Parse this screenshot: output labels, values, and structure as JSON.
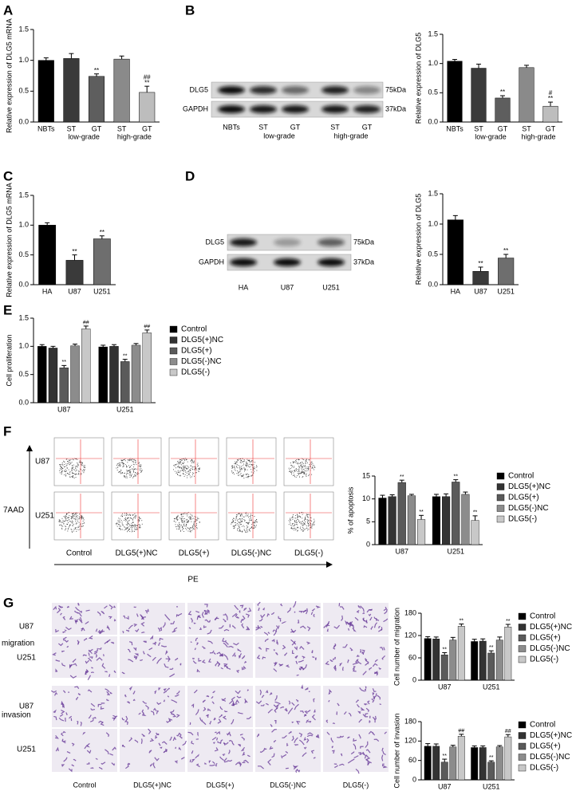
{
  "panel_labels": [
    "A",
    "B",
    "C",
    "D",
    "E",
    "F",
    "G"
  ],
  "blots": [
    {
      "rows": [
        "DLG5",
        "GAPDH"
      ],
      "sizes": [
        "75kDa",
        "37kDa"
      ],
      "lanes": [
        "NBTs",
        "ST",
        "GT",
        "ST",
        "GT"
      ],
      "lane_groups": [
        "low-grade",
        "high-grade"
      ]
    },
    {
      "rows": [
        "DLG5",
        "GAPDH"
      ],
      "sizes": [
        "75kDa",
        "37kDa"
      ],
      "lanes": [
        "HA",
        "U87",
        "U251"
      ]
    }
  ],
  "flow": {
    "rows": [
      "U87",
      "U251"
    ],
    "y_label": "7AAD",
    "x_label": "PE",
    "columns": [
      "Control",
      "DLG5(+)NC",
      "DLG5(+)",
      "DLG5(-)NC",
      "DLG5(-)"
    ]
  },
  "micrographs": {
    "rows": [
      "U87",
      "U251",
      "U87",
      "U251"
    ],
    "assays": [
      "migration",
      "invasion"
    ],
    "columns": [
      "Control",
      "DLG5(+)NC",
      "DLG5(+)",
      "DLG5(-)NC",
      "DLG5(-)"
    ]
  },
  "chart_data": [
    {
      "type": "bar",
      "y_label": "Relative expression of DLG5 mRNA",
      "categories": [
        "NBTs",
        "ST",
        "GT",
        "ST",
        "GT"
      ],
      "category_groups": [
        "low-grade",
        "high-grade"
      ],
      "values": [
        1.0,
        1.03,
        0.74,
        1.02,
        0.48
      ],
      "errors": [
        0.04,
        0.08,
        0.04,
        0.05,
        0.1
      ],
      "colors": [
        "#000000",
        "#3a3a3a",
        "#5e5e5e",
        "#8a8a8a",
        "#bdbdbd"
      ],
      "annotations": [
        [],
        [],
        [
          "**"
        ],
        [],
        [
          "##",
          "**"
        ]
      ],
      "ylim": [
        0,
        1.5
      ],
      "yticks": [
        {
          "value": 0,
          "label": "0.0"
        },
        0.5,
        {
          "value": 1,
          "label": "1.0"
        },
        1.5
      ]
    },
    {
      "type": "bar",
      "y_label": "Relative expression of DLG5",
      "categories": [
        "NBTs",
        "ST",
        "GT",
        "ST",
        "GT"
      ],
      "category_groups": [
        "low-grade",
        "high-grade"
      ],
      "values": [
        1.04,
        0.92,
        0.41,
        0.93,
        0.27
      ],
      "errors": [
        0.03,
        0.07,
        0.04,
        0.04,
        0.07
      ],
      "colors": [
        "#000000",
        "#3a3a3a",
        "#5e5e5e",
        "#8a8a8a",
        "#bdbdbd"
      ],
      "annotations": [
        [],
        [],
        [
          "**"
        ],
        [],
        [
          "#",
          "**"
        ]
      ],
      "ylim": [
        0,
        1.5
      ],
      "yticks": [
        {
          "value": 0,
          "label": "0.0"
        },
        0.5,
        {
          "value": 1,
          "label": "1.0"
        },
        1.5
      ]
    },
    {
      "type": "bar",
      "y_label": "Relative expression of DLG5 mRNA",
      "categories": [
        "HA",
        "U87",
        "U251"
      ],
      "values": [
        1.0,
        0.41,
        0.77
      ],
      "errors": [
        0.04,
        0.09,
        0.05
      ],
      "colors": [
        "#000000",
        "#3a3a3a",
        "#6e6e6e"
      ],
      "annotations": [
        [],
        [
          "**"
        ],
        [
          "**"
        ]
      ],
      "ylim": [
        0,
        1.5
      ],
      "yticks": [
        {
          "value": 0,
          "label": "0.0"
        },
        0.5,
        {
          "value": 1,
          "label": "1.0"
        },
        1.5
      ]
    },
    {
      "type": "bar",
      "y_label": "Relative expression of DLG5",
      "categories": [
        "HA",
        "U87",
        "U251"
      ],
      "values": [
        1.07,
        0.22,
        0.44
      ],
      "errors": [
        0.07,
        0.07,
        0.06
      ],
      "colors": [
        "#000000",
        "#3a3a3a",
        "#6e6e6e"
      ],
      "annotations": [
        [],
        [
          "**"
        ],
        [
          "**"
        ]
      ],
      "ylim": [
        0,
        1.5
      ],
      "yticks": [
        {
          "value": 0,
          "label": "0.0"
        },
        0.5,
        {
          "value": 1,
          "label": "1.0"
        },
        1.5
      ]
    },
    {
      "type": "grouped_bar",
      "y_label": "Cell proliferation",
      "categories": [
        "U87",
        "U251"
      ],
      "series": [
        {
          "name": "Control",
          "color": "#000000",
          "values": [
            1.0,
            0.99
          ],
          "errors": [
            0.03,
            0.03
          ],
          "annotations": [
            null,
            null
          ]
        },
        {
          "name": "DLG5(+)NC",
          "color": "#333333",
          "values": [
            0.97,
            1.0
          ],
          "errors": [
            0.03,
            0.03
          ],
          "annotations": [
            null,
            null
          ]
        },
        {
          "name": "DLG5(+)",
          "color": "#5a5a5a",
          "values": [
            0.62,
            0.73
          ],
          "errors": [
            0.04,
            0.04
          ],
          "annotations": [
            "**",
            "**"
          ]
        },
        {
          "name": "DLG5(-)NC",
          "color": "#8c8c8c",
          "values": [
            1.01,
            1.02
          ],
          "errors": [
            0.03,
            0.03
          ],
          "annotations": [
            null,
            null
          ]
        },
        {
          "name": "DLG5(-)",
          "color": "#c8c8c8",
          "values": [
            1.31,
            1.24
          ],
          "errors": [
            0.05,
            0.05
          ],
          "annotations": [
            "##",
            "##"
          ]
        }
      ],
      "ylim": [
        0,
        1.5
      ],
      "yticks": [
        {
          "value": 0,
          "label": "0.0"
        },
        0.5,
        {
          "value": 1,
          "label": "1.0"
        },
        1.5
      ]
    },
    {
      "type": "grouped_bar",
      "y_label": "% of apoptosis",
      "categories": [
        "U87",
        "U251"
      ],
      "series": [
        {
          "name": "Control",
          "color": "#000000",
          "values": [
            10.2,
            10.5
          ],
          "errors": [
            0.6,
            0.5
          ],
          "annotations": [
            null,
            null
          ]
        },
        {
          "name": "DLG5(+)NC",
          "color": "#333333",
          "values": [
            10.5,
            10.5
          ],
          "errors": [
            0.4,
            0.6
          ],
          "annotations": [
            null,
            null
          ]
        },
        {
          "name": "DLG5(+)",
          "color": "#5a5a5a",
          "values": [
            13.6,
            13.7
          ],
          "errors": [
            0.5,
            0.5
          ],
          "annotations": [
            "**",
            "**"
          ]
        },
        {
          "name": "DLG5(-)NC",
          "color": "#8c8c8c",
          "values": [
            10.7,
            11.0
          ],
          "errors": [
            0.3,
            0.5
          ],
          "annotations": [
            null,
            null
          ]
        },
        {
          "name": "DLG5(-)",
          "color": "#c8c8c8",
          "values": [
            5.5,
            5.3
          ],
          "errors": [
            0.9,
            1.0
          ],
          "annotations": [
            "**",
            "**"
          ]
        }
      ],
      "ylim": [
        0,
        15
      ],
      "yticks": [
        0,
        5,
        10,
        15
      ]
    },
    {
      "type": "grouped_bar",
      "y_label": "Cell number of migration",
      "categories": [
        "U87",
        "U251"
      ],
      "series": [
        {
          "name": "Control",
          "color": "#000000",
          "values": [
            112,
            104
          ],
          "errors": [
            5,
            6
          ],
          "annotations": [
            null,
            null
          ]
        },
        {
          "name": "DLG5(+)NC",
          "color": "#333333",
          "values": [
            111,
            105
          ],
          "errors": [
            5,
            6
          ],
          "annotations": [
            null,
            null
          ]
        },
        {
          "name": "DLG5(+)",
          "color": "#5a5a5a",
          "values": [
            68,
            73
          ],
          "errors": [
            6,
            6
          ],
          "annotations": [
            "**",
            "**"
          ]
        },
        {
          "name": "DLG5(-)NC",
          "color": "#8c8c8c",
          "values": [
            108,
            108
          ],
          "errors": [
            7,
            8
          ],
          "annotations": [
            null,
            null
          ]
        },
        {
          "name": "DLG5(-)",
          "color": "#c8c8c8",
          "values": [
            145,
            143
          ],
          "errors": [
            6,
            7
          ],
          "annotations": [
            "**",
            "**"
          ]
        }
      ],
      "ylim": [
        0,
        180
      ],
      "yticks": [
        0,
        60,
        120,
        180
      ]
    },
    {
      "type": "grouped_bar",
      "y_label": "Cell number of invasion",
      "categories": [
        "U87",
        "U251"
      ],
      "series": [
        {
          "name": "Control",
          "color": "#000000",
          "values": [
            104,
            100
          ],
          "errors": [
            8,
            5
          ],
          "annotations": [
            null,
            null
          ]
        },
        {
          "name": "DLG5(+)NC",
          "color": "#333333",
          "values": [
            104,
            100
          ],
          "errors": [
            7,
            5
          ],
          "annotations": [
            null,
            null
          ]
        },
        {
          "name": "DLG5(+)",
          "color": "#5a5a5a",
          "values": [
            55,
            55
          ],
          "errors": [
            9,
            4
          ],
          "annotations": [
            "**",
            "**"
          ]
        },
        {
          "name": "DLG5(-)NC",
          "color": "#8c8c8c",
          "values": [
            102,
            102
          ],
          "errors": [
            5,
            4
          ],
          "annotations": [
            null,
            null
          ]
        },
        {
          "name": "DLG5(-)",
          "color": "#c8c8c8",
          "values": [
            135,
            133
          ],
          "errors": [
            6,
            7
          ],
          "annotations": [
            "##",
            "##"
          ]
        }
      ],
      "ylim": [
        0,
        180
      ],
      "yticks": [
        0,
        60,
        120,
        180
      ]
    }
  ]
}
